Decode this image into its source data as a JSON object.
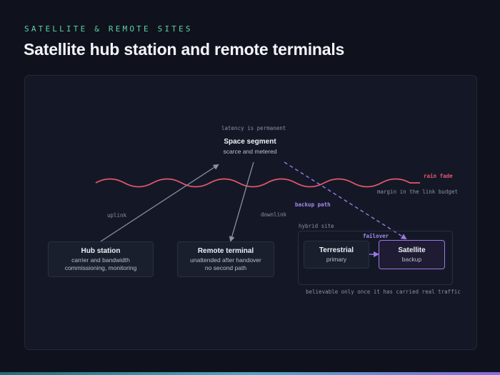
{
  "header": {
    "eyebrow": "SATELLITE & REMOTE SITES",
    "title": "Satellite hub station and remote terminals"
  },
  "diagram": {
    "top_note": "latency is permanent",
    "space_segment": {
      "title": "Space segment",
      "subtitle": "scarce and metered"
    },
    "rain_fade": {
      "label": "rain fade",
      "note": "margin in the link budget"
    },
    "edges": {
      "uplink": "uplink",
      "downlink": "downlink",
      "backup_path": "backup path",
      "failover": "failover"
    },
    "hub_station": {
      "title": "Hub station",
      "lines": [
        "carrier and bandwidth",
        "commissioning, monitoring"
      ]
    },
    "remote_terminal": {
      "title": "Remote terminal",
      "lines": [
        "unattended after handover",
        "no second path"
      ]
    },
    "hybrid_site": {
      "label": "hybrid site",
      "terrestrial": {
        "title": "Terrestrial",
        "subtitle": "primary"
      },
      "satellite": {
        "title": "Satellite",
        "subtitle": "backup"
      }
    },
    "footnote": "believable only once it has carried real traffic"
  },
  "colors": {
    "accent_green": "#5fd0a8",
    "rain_red": "#e5566e",
    "backup_purple": "#9a79e6",
    "arrow_gray": "#8a90a8"
  }
}
